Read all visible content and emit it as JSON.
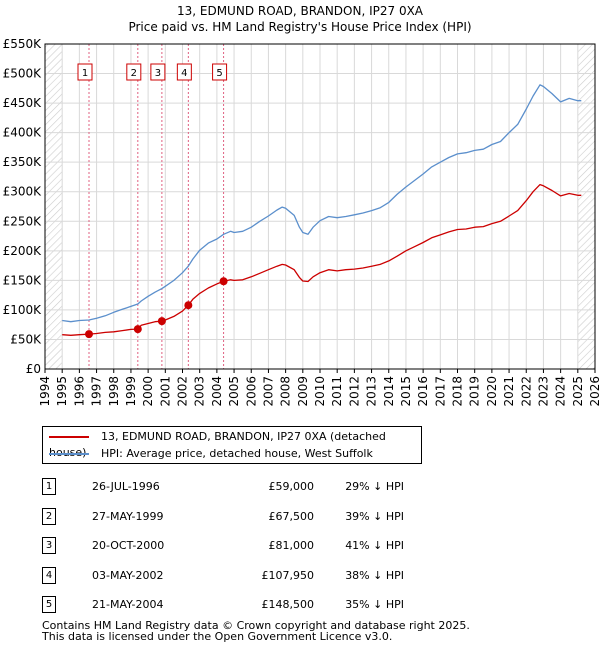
{
  "title": {
    "line1": "13, EDMUND ROAD, BRANDON, IP27 0XA",
    "line2": "Price paid vs. HM Land Registry's House Price Index (HPI)"
  },
  "colors": {
    "property": "#cc0000",
    "hpi": "#5b8fcc",
    "marker_line": "#e06080"
  },
  "legend": {
    "property": "13, EDMUND ROAD, BRANDON, IP27 0XA (detached house)",
    "hpi": "HPI: Average price, detached house, West Suffolk"
  },
  "sales": [
    {
      "num": "1",
      "date": "26-JUL-1996",
      "price": "£59,000",
      "hpi": "29% ↓ HPI"
    },
    {
      "num": "2",
      "date": "27-MAY-1999",
      "price": "£67,500",
      "hpi": "39% ↓ HPI"
    },
    {
      "num": "3",
      "date": "20-OCT-2000",
      "price": "£81,000",
      "hpi": "41% ↓ HPI"
    },
    {
      "num": "4",
      "date": "03-MAY-2002",
      "price": "£107,950",
      "hpi": "38% ↓ HPI"
    },
    {
      "num": "5",
      "date": "21-MAY-2004",
      "price": "£148,500",
      "hpi": "35% ↓ HPI"
    }
  ],
  "footer": {
    "line1": "Contains HM Land Registry data © Crown copyright and database right 2025.",
    "line2": "This data is licensed under the Open Government Licence v3.0."
  },
  "chart_data": {
    "type": "line",
    "title": "13, EDMUND ROAD, BRANDON, IP27 0XA",
    "subtitle": "Price paid vs. HM Land Registry's House Price Index (HPI)",
    "xlim": [
      1994,
      2026
    ],
    "ylim": [
      0,
      550000
    ],
    "x_ticks": [
      1994,
      1995,
      1996,
      1997,
      1998,
      1999,
      2000,
      2001,
      2002,
      2003,
      2004,
      2005,
      2006,
      2007,
      2008,
      2009,
      2010,
      2011,
      2012,
      2013,
      2014,
      2015,
      2016,
      2017,
      2018,
      2019,
      2020,
      2021,
      2022,
      2023,
      2024,
      2025,
      2026
    ],
    "y_ticks": [
      {
        "value": 0,
        "label": "£0"
      },
      {
        "value": 50000,
        "label": "£50K"
      },
      {
        "value": 100000,
        "label": "£100K"
      },
      {
        "value": 150000,
        "label": "£150K"
      },
      {
        "value": 200000,
        "label": "£200K"
      },
      {
        "value": 250000,
        "label": "£250K"
      },
      {
        "value": 300000,
        "label": "£300K"
      },
      {
        "value": 350000,
        "label": "£350K"
      },
      {
        "value": 400000,
        "label": "£400K"
      },
      {
        "value": 450000,
        "label": "£450K"
      },
      {
        "value": 500000,
        "label": "£500K"
      },
      {
        "value": 550000,
        "label": "£550K"
      }
    ],
    "hatched_ranges": [
      [
        1994,
        1995
      ],
      [
        2025.0,
        2026
      ]
    ],
    "series": [
      {
        "name": "13, EDMUND ROAD, BRANDON, IP27 0XA (detached house)",
        "points": [
          [
            1995,
            58000
          ],
          [
            1995.5,
            57000
          ],
          [
            1996,
            58000
          ],
          [
            1996.56,
            59000
          ],
          [
            1997,
            60000
          ],
          [
            1997.5,
            62000
          ],
          [
            1998,
            63000
          ],
          [
            1998.5,
            65000
          ],
          [
            1999,
            67000
          ],
          [
            1999.4,
            67500
          ],
          [
            1999.6,
            74000
          ],
          [
            2000,
            77000
          ],
          [
            2000.4,
            80000
          ],
          [
            2000.8,
            81000
          ],
          [
            2001,
            83000
          ],
          [
            2001.5,
            89000
          ],
          [
            2002,
            98000
          ],
          [
            2002.34,
            107950
          ],
          [
            2002.6,
            118000
          ],
          [
            2003,
            128000
          ],
          [
            2003.5,
            137000
          ],
          [
            2004,
            144000
          ],
          [
            2004.39,
            148500
          ],
          [
            2004.8,
            151000
          ],
          [
            2005,
            150000
          ],
          [
            2005.5,
            151000
          ],
          [
            2006,
            156000
          ],
          [
            2006.5,
            162000
          ],
          [
            2007,
            168000
          ],
          [
            2007.5,
            174000
          ],
          [
            2007.8,
            177000
          ],
          [
            2008,
            176000
          ],
          [
            2008.5,
            168000
          ],
          [
            2008.8,
            155000
          ],
          [
            2009,
            149000
          ],
          [
            2009.3,
            148000
          ],
          [
            2009.6,
            156000
          ],
          [
            2010,
            163000
          ],
          [
            2010.5,
            168000
          ],
          [
            2011,
            166000
          ],
          [
            2011.5,
            168000
          ],
          [
            2012,
            169000
          ],
          [
            2012.5,
            171000
          ],
          [
            2013,
            174000
          ],
          [
            2013.5,
            177000
          ],
          [
            2014,
            183000
          ],
          [
            2014.5,
            191000
          ],
          [
            2015,
            200000
          ],
          [
            2015.5,
            207000
          ],
          [
            2016,
            214000
          ],
          [
            2016.5,
            222000
          ],
          [
            2017,
            227000
          ],
          [
            2017.5,
            232000
          ],
          [
            2018,
            236000
          ],
          [
            2018.5,
            237000
          ],
          [
            2019,
            240000
          ],
          [
            2019.5,
            241000
          ],
          [
            2020,
            246000
          ],
          [
            2020.5,
            250000
          ],
          [
            2021,
            259000
          ],
          [
            2021.5,
            268000
          ],
          [
            2022,
            285000
          ],
          [
            2022.4,
            300000
          ],
          [
            2022.8,
            312000
          ],
          [
            2023,
            310000
          ],
          [
            2023.5,
            302000
          ],
          [
            2024,
            293000
          ],
          [
            2024.5,
            297000
          ],
          [
            2025,
            294000
          ],
          [
            2025.2,
            294000
          ]
        ]
      },
      {
        "name": "HPI: Average price, detached house, West Suffolk",
        "points": [
          [
            1995,
            82000
          ],
          [
            1995.5,
            80000
          ],
          [
            1996,
            82000
          ],
          [
            1996.56,
            83000
          ],
          [
            1997,
            86000
          ],
          [
            1997.5,
            90000
          ],
          [
            1998,
            96000
          ],
          [
            1998.5,
            101000
          ],
          [
            1999,
            106000
          ],
          [
            1999.4,
            110000
          ],
          [
            1999.6,
            115000
          ],
          [
            2000,
            123000
          ],
          [
            2000.4,
            130000
          ],
          [
            2000.8,
            136000
          ],
          [
            2001,
            140000
          ],
          [
            2001.5,
            150000
          ],
          [
            2002,
            163000
          ],
          [
            2002.34,
            174000
          ],
          [
            2002.6,
            186000
          ],
          [
            2003,
            201000
          ],
          [
            2003.5,
            213000
          ],
          [
            2004,
            220000
          ],
          [
            2004.39,
            228000
          ],
          [
            2004.8,
            233000
          ],
          [
            2005,
            231000
          ],
          [
            2005.5,
            233000
          ],
          [
            2006,
            240000
          ],
          [
            2006.5,
            250000
          ],
          [
            2007,
            259000
          ],
          [
            2007.5,
            269000
          ],
          [
            2007.8,
            274000
          ],
          [
            2008,
            272000
          ],
          [
            2008.5,
            260000
          ],
          [
            2008.8,
            240000
          ],
          [
            2009,
            231000
          ],
          [
            2009.3,
            228000
          ],
          [
            2009.6,
            240000
          ],
          [
            2010,
            251000
          ],
          [
            2010.5,
            258000
          ],
          [
            2011,
            256000
          ],
          [
            2011.5,
            258000
          ],
          [
            2012,
            261000
          ],
          [
            2012.5,
            264000
          ],
          [
            2013,
            268000
          ],
          [
            2013.5,
            273000
          ],
          [
            2014,
            282000
          ],
          [
            2014.5,
            296000
          ],
          [
            2015,
            308000
          ],
          [
            2015.5,
            319000
          ],
          [
            2016,
            330000
          ],
          [
            2016.5,
            342000
          ],
          [
            2017,
            350000
          ],
          [
            2017.5,
            358000
          ],
          [
            2018,
            364000
          ],
          [
            2018.5,
            366000
          ],
          [
            2019,
            370000
          ],
          [
            2019.5,
            372000
          ],
          [
            2020,
            380000
          ],
          [
            2020.5,
            385000
          ],
          [
            2021,
            400000
          ],
          [
            2021.5,
            414000
          ],
          [
            2022,
            440000
          ],
          [
            2022.4,
            462000
          ],
          [
            2022.8,
            481000
          ],
          [
            2023,
            478000
          ],
          [
            2023.5,
            466000
          ],
          [
            2024,
            452000
          ],
          [
            2024.5,
            458000
          ],
          [
            2025,
            454000
          ],
          [
            2025.2,
            454000
          ]
        ]
      }
    ],
    "sale_markers": [
      {
        "label": "1",
        "x": 1996.56,
        "y": 59000
      },
      {
        "label": "2",
        "x": 1999.4,
        "y": 67500
      },
      {
        "label": "3",
        "x": 2000.8,
        "y": 81000
      },
      {
        "label": "4",
        "x": 2002.34,
        "y": 107950
      },
      {
        "label": "5",
        "x": 2004.39,
        "y": 148500
      }
    ]
  }
}
